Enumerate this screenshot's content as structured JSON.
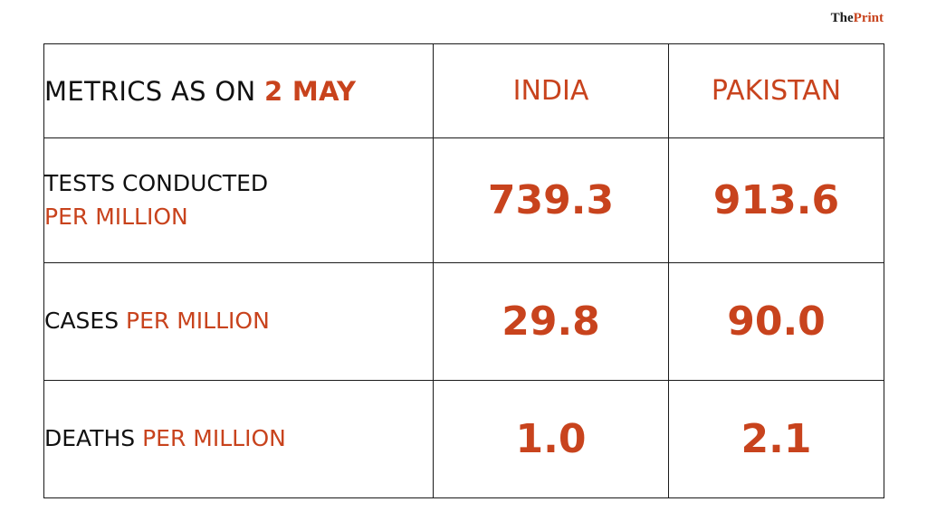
{
  "brand": {
    "the": "The",
    "print": "Print"
  },
  "header": {
    "label_prefix": "METRICS AS ON ",
    "label_date": "2 MAY",
    "columns": [
      "INDIA",
      "PAKISTAN"
    ]
  },
  "rows": [
    {
      "label_main": "TESTS CONDUCTED",
      "label_accent": "PER MILLION",
      "india": "739.3",
      "pakistan": "913.6"
    },
    {
      "label_main": "CASES ",
      "label_accent": "PER MILLION",
      "india": "29.8",
      "pakistan": "90.0"
    },
    {
      "label_main": "DEATHS ",
      "label_accent": "PER MILLION",
      "india": "1.0",
      "pakistan": "2.1"
    }
  ],
  "colors": {
    "accent": "#c8431d",
    "text": "#111111",
    "border": "#1a1a1a"
  }
}
